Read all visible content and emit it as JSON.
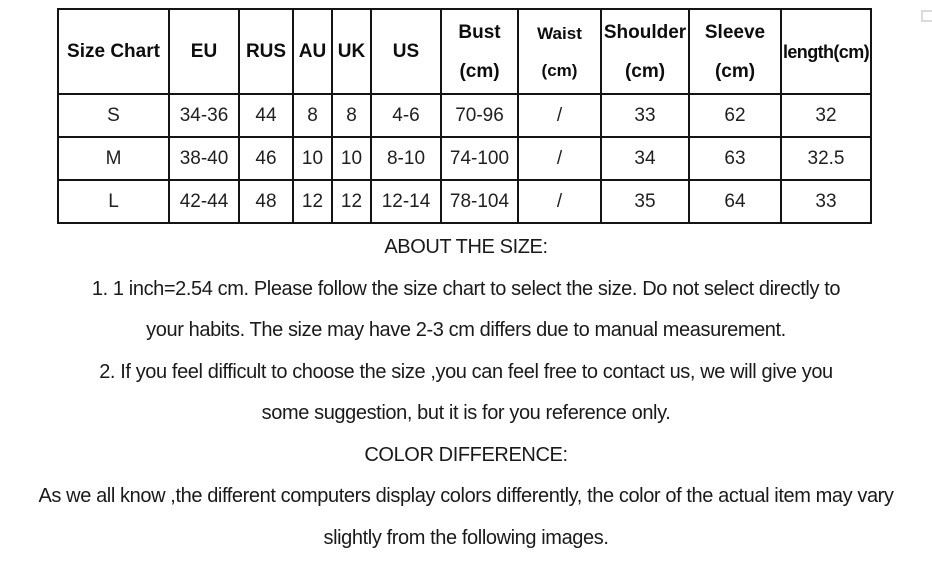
{
  "colors": {
    "background": "#ffffff",
    "table_border": "#141414",
    "text": "#1a1a1a"
  },
  "table": {
    "columns": [
      {
        "label": "Size Chart"
      },
      {
        "label": "EU"
      },
      {
        "label": "RUS"
      },
      {
        "label": "AU"
      },
      {
        "label": "UK"
      },
      {
        "label": "US"
      },
      {
        "label": "Bust",
        "sub": "(cm)"
      },
      {
        "label": "Waist",
        "sub": "(cm)"
      },
      {
        "label": "Shoulder",
        "sub": "(cm)"
      },
      {
        "label": "Sleeve",
        "sub": "(cm)"
      },
      {
        "label": "length(cm)"
      }
    ],
    "rows": [
      [
        "S",
        "34-36",
        "44",
        "8",
        "8",
        "4-6",
        "70-96",
        "/",
        "33",
        "62",
        "32"
      ],
      [
        "M",
        "38-40",
        "46",
        "10",
        "10",
        "8-10",
        "74-100",
        "/",
        "34",
        "63",
        "32.5"
      ],
      [
        "L",
        "42-44",
        "48",
        "12",
        "12",
        "12-14",
        "78-104",
        "/",
        "35",
        "64",
        "33"
      ]
    ]
  },
  "notes": {
    "about_heading": "ABOUT THE SIZE:",
    "about_line1": "1. 1 inch=2.54 cm. Please follow the size chart to select the size. Do not select directly to",
    "about_line2": "your habits. The size may have 2-3 cm differs due to manual measurement.",
    "about_line3": "2. If you feel difficult to choose the size ,you can feel free to contact us, we will give you",
    "about_line4": "some suggestion, but it is for you reference only.",
    "color_heading": "COLOR DIFFERENCE:",
    "color_line1": "As we all know ,the different computers display colors differently, the color of the actual item may vary",
    "color_line2": "slightly from the following images."
  }
}
